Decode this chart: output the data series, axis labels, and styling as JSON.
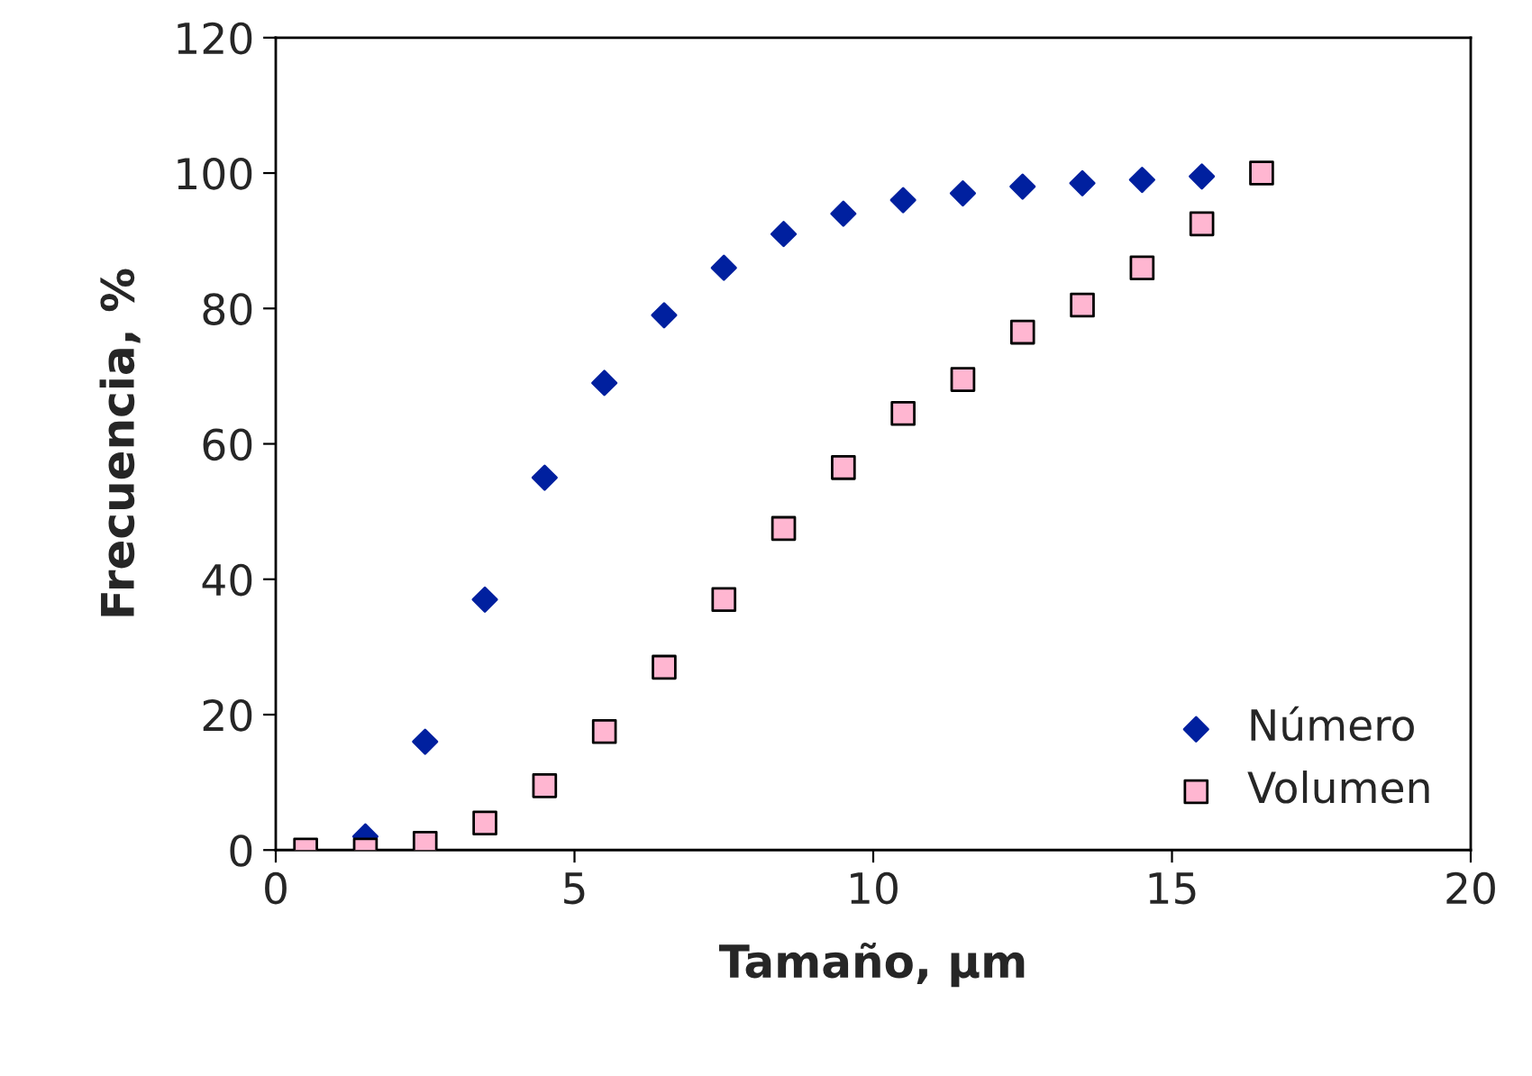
{
  "chart_data": {
    "type": "scatter",
    "xlabel": "Tamaño, μm",
    "ylabel": "Frecuencia, %",
    "xlim": [
      0,
      20
    ],
    "ylim": [
      0,
      120
    ],
    "xticks": [
      0,
      5,
      10,
      15,
      20
    ],
    "yticks": [
      0,
      20,
      40,
      60,
      80,
      100,
      120
    ],
    "grid": false,
    "legend": "lower right",
    "series": [
      {
        "name": "Número",
        "color": "#00209f",
        "marker": "diamond",
        "x": [
          1.5,
          2.5,
          3.5,
          4.5,
          5.5,
          6.5,
          7.5,
          8.5,
          9.5,
          10.5,
          11.5,
          12.5,
          13.5,
          14.5,
          15.5
        ],
        "values": [
          2,
          16,
          37,
          55,
          69,
          79,
          86,
          91,
          94,
          96,
          97,
          98,
          98.5,
          99,
          99.5
        ]
      },
      {
        "name": "Volumen",
        "color": "#ffb6d1",
        "marker": "square",
        "x": [
          0.5,
          1.5,
          2.5,
          3.5,
          4.5,
          5.5,
          6.5,
          7.5,
          8.5,
          9.5,
          10.5,
          11.5,
          12.5,
          13.5,
          14.5,
          15.5,
          16.5
        ],
        "values": [
          0,
          0,
          1,
          4,
          9.5,
          17.5,
          27,
          37,
          47.5,
          56.5,
          64.5,
          69.5,
          76.5,
          80.5,
          86,
          92.5,
          100
        ]
      }
    ]
  }
}
